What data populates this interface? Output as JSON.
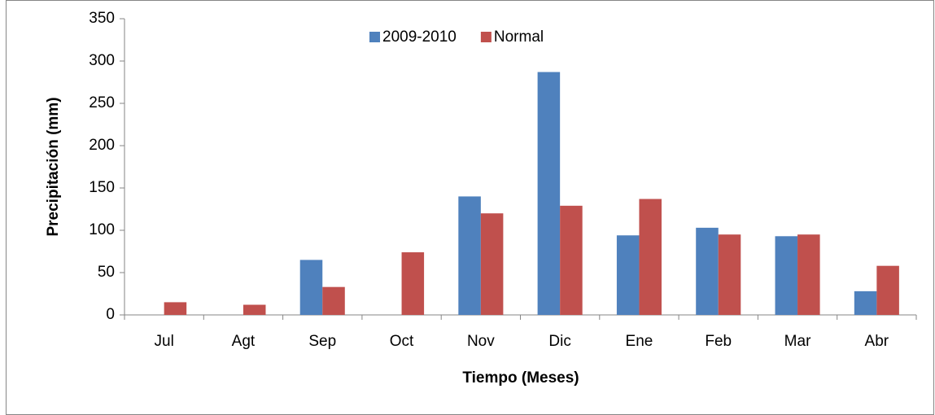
{
  "chart_data": {
    "type": "bar",
    "x_label": "Tiempo (Meses)",
    "y_label": "Precipitación (mm)",
    "categories": [
      "Jul",
      "Agt",
      "Sep",
      "Oct",
      "Nov",
      "Dic",
      "Ene",
      "Feb",
      "Mar",
      "Abr"
    ],
    "series": [
      {
        "name": "2009-2010",
        "color": "#4f81bd",
        "values": [
          0,
          0,
          65,
          0,
          140,
          287,
          94,
          103,
          93,
          28
        ]
      },
      {
        "name": "Normal",
        "color": "#c0504d",
        "values": [
          15,
          12,
          33,
          74,
          120,
          129,
          137,
          95,
          95,
          58
        ]
      }
    ],
    "ylim": [
      0,
      350
    ],
    "yticks": [
      0,
      50,
      100,
      150,
      200,
      250,
      300,
      350
    ],
    "grid": false,
    "legend": "top"
  }
}
